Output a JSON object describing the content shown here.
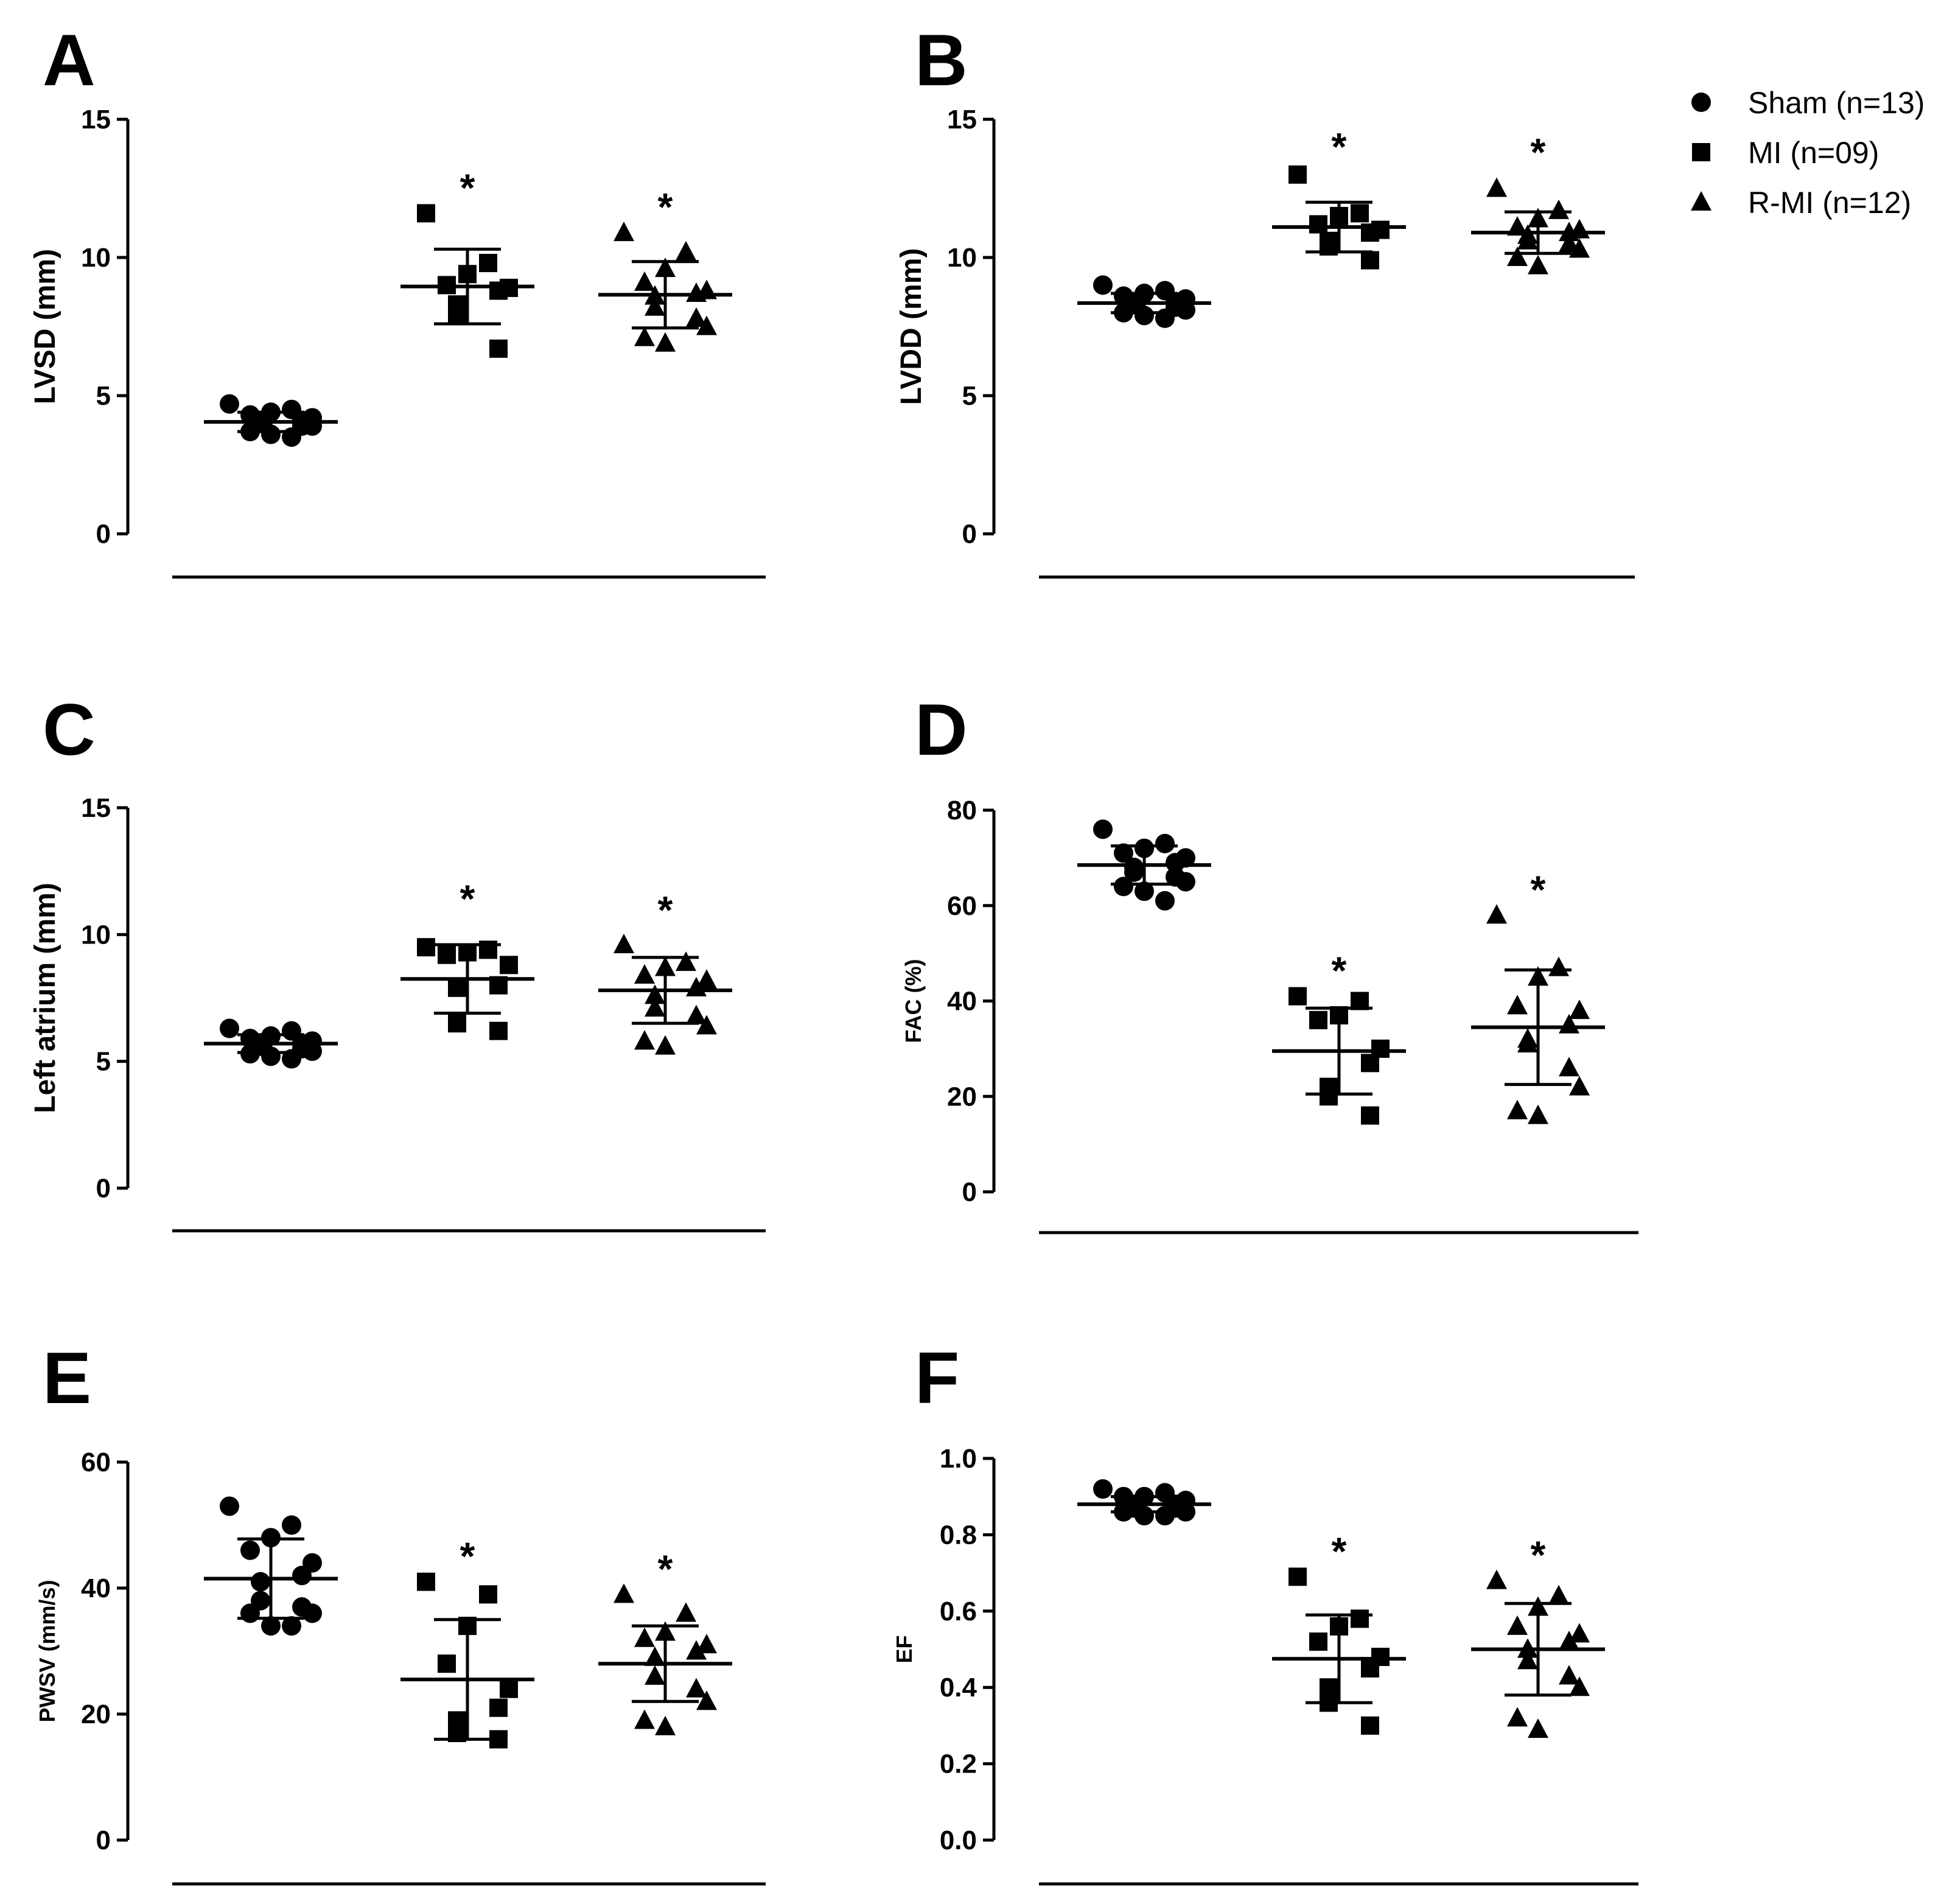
{
  "chart_data": [
    {
      "panel": "A",
      "type": "scatter",
      "ylabel": "LVSD (mm)",
      "ylim": [
        0,
        15
      ],
      "yticks": [
        "0",
        "5",
        "10",
        "15"
      ],
      "groups": [
        {
          "name": "Sham (n=13)",
          "marker": "circle",
          "mean": 4.05,
          "sd": 0.35,
          "significance": "",
          "values": [
            4.7,
            4.5,
            4.4,
            4.3,
            4.2,
            4.1,
            4.0,
            4.0,
            3.9,
            3.9,
            3.7,
            3.6,
            3.5
          ]
        },
        {
          "name": "MI (n=09)",
          "marker": "square",
          "mean": 8.95,
          "sd": 1.35,
          "significance": "*",
          "values": [
            11.6,
            9.8,
            9.4,
            9.0,
            8.9,
            8.8,
            8.3,
            7.9,
            6.7
          ]
        },
        {
          "name": "R-MI (n=12)",
          "marker": "triangle",
          "mean": 8.65,
          "sd": 1.2,
          "significance": "*",
          "values": [
            10.9,
            10.2,
            9.6,
            9.1,
            8.8,
            8.7,
            8.6,
            8.2,
            7.8,
            7.5,
            7.1,
            6.9
          ]
        }
      ]
    },
    {
      "panel": "B",
      "type": "scatter",
      "ylabel": "LVDD (mm)",
      "ylim": [
        0,
        15
      ],
      "yticks": [
        "0",
        "5",
        "10",
        "15"
      ],
      "groups": [
        {
          "name": "Sham (n=13)",
          "marker": "circle",
          "mean": 8.35,
          "sd": 0.35,
          "significance": "",
          "values": [
            9.0,
            8.8,
            8.7,
            8.6,
            8.5,
            8.4,
            8.3,
            8.3,
            8.2,
            8.1,
            8.0,
            7.9,
            7.8
          ]
        },
        {
          "name": "MI (n=09)",
          "marker": "square",
          "mean": 11.1,
          "sd": 0.9,
          "significance": "*",
          "values": [
            13.0,
            11.6,
            11.5,
            11.2,
            11.0,
            10.9,
            10.6,
            10.4,
            9.9
          ]
        },
        {
          "name": "R-MI (n=12)",
          "marker": "triangle",
          "mean": 10.9,
          "sd": 0.75,
          "significance": "*",
          "values": [
            12.5,
            11.7,
            11.4,
            11.1,
            11.0,
            10.9,
            10.8,
            10.6,
            10.5,
            10.3,
            10.0,
            9.7
          ]
        }
      ]
    },
    {
      "panel": "C",
      "type": "scatter",
      "ylabel": "Left atrium (mm)",
      "ylim": [
        0,
        15
      ],
      "yticks": [
        "0",
        "5",
        "10",
        "15"
      ],
      "groups": [
        {
          "name": "Sham (n=13)",
          "marker": "circle",
          "mean": 5.7,
          "sd": 0.35,
          "significance": "",
          "values": [
            6.3,
            6.2,
            6.0,
            5.9,
            5.8,
            5.7,
            5.6,
            5.6,
            5.5,
            5.4,
            5.3,
            5.2,
            5.1
          ]
        },
        {
          "name": "MI (n=09)",
          "marker": "square",
          "mean": 8.25,
          "sd": 1.35,
          "significance": "*",
          "values": [
            9.5,
            9.4,
            9.3,
            9.2,
            8.8,
            8.0,
            7.9,
            6.5,
            6.2
          ]
        },
        {
          "name": "R-MI (n=12)",
          "marker": "triangle",
          "mean": 7.8,
          "sd": 1.3,
          "significance": "*",
          "values": [
            9.6,
            8.9,
            8.7,
            8.4,
            8.2,
            7.9,
            7.6,
            7.1,
            6.8,
            6.4,
            5.8,
            5.6
          ]
        }
      ]
    },
    {
      "panel": "D",
      "type": "scatter",
      "ylabel": "FAC (%)",
      "ylim": [
        0,
        80
      ],
      "yticks": [
        "0",
        "20",
        "40",
        "60",
        "80"
      ],
      "groups": [
        {
          "name": "Sham (n=13)",
          "marker": "circle",
          "mean": 68.5,
          "sd": 4.0,
          "significance": "",
          "values": [
            76,
            73,
            72,
            71,
            70,
            69,
            68,
            67,
            66,
            65,
            64,
            63,
            61
          ]
        },
        {
          "name": "MI (n=09)",
          "marker": "square",
          "mean": 29.5,
          "sd": 9.0,
          "significance": "*",
          "values": [
            41,
            40,
            37,
            36,
            30,
            27,
            22,
            20,
            16
          ]
        },
        {
          "name": "R-MI (n=12)",
          "marker": "triangle",
          "mean": 34.5,
          "sd": 12.0,
          "significance": "*",
          "values": [
            58,
            47,
            45,
            39,
            38,
            35,
            32,
            31,
            26,
            22,
            17,
            16
          ]
        }
      ]
    },
    {
      "panel": "E",
      "type": "scatter",
      "ylabel": "PWSV (mm/s)",
      "ylim": [
        0,
        60
      ],
      "yticks": [
        "0",
        "20",
        "40",
        "60"
      ],
      "groups": [
        {
          "name": "Sham (n=13)",
          "marker": "circle",
          "mean": 41.5,
          "sd": 6.3,
          "significance": "",
          "values": [
            53,
            50,
            48,
            46,
            44,
            42,
            41,
            38,
            37,
            36,
            36,
            34,
            34
          ]
        },
        {
          "name": "MI (n=09)",
          "marker": "square",
          "mean": 25.5,
          "sd": 9.5,
          "significance": "*",
          "values": [
            41,
            39,
            34,
            28,
            24,
            21,
            19,
            17,
            16
          ]
        },
        {
          "name": "R-MI (n=12)",
          "marker": "triangle",
          "mean": 28.0,
          "sd": 6.0,
          "significance": "*",
          "values": [
            39,
            36,
            33,
            32,
            31,
            30,
            29,
            26,
            24,
            22,
            19,
            18
          ]
        }
      ]
    },
    {
      "panel": "F",
      "type": "scatter",
      "ylabel": "EF",
      "ylim": [
        0,
        1.0
      ],
      "yticks": [
        "0.0",
        "0.2",
        "0.4",
        "0.6",
        "0.8",
        "1.0"
      ],
      "groups": [
        {
          "name": "Sham (n=13)",
          "marker": "circle",
          "mean": 0.88,
          "sd": 0.02,
          "significance": "",
          "values": [
            0.92,
            0.91,
            0.9,
            0.9,
            0.89,
            0.88,
            0.88,
            0.87,
            0.87,
            0.86,
            0.86,
            0.85,
            0.85
          ]
        },
        {
          "name": "MI (n=09)",
          "marker": "square",
          "mean": 0.475,
          "sd": 0.115,
          "significance": "*",
          "values": [
            0.69,
            0.58,
            0.56,
            0.52,
            0.48,
            0.45,
            0.4,
            0.36,
            0.3
          ]
        },
        {
          "name": "R-MI (n=12)",
          "marker": "triangle",
          "mean": 0.5,
          "sd": 0.12,
          "significance": "*",
          "values": [
            0.68,
            0.64,
            0.61,
            0.56,
            0.54,
            0.52,
            0.5,
            0.47,
            0.43,
            0.4,
            0.32,
            0.29
          ]
        }
      ]
    }
  ],
  "legend": {
    "position": "top-right",
    "entries": [
      {
        "marker": "circle",
        "label": "Sham (n=13)"
      },
      {
        "marker": "square",
        "label": "MI (n=09)"
      },
      {
        "marker": "triangle",
        "label": "R-MI (n=12)"
      }
    ]
  },
  "colors": {
    "ink": "#000000",
    "background": "#ffffff"
  }
}
